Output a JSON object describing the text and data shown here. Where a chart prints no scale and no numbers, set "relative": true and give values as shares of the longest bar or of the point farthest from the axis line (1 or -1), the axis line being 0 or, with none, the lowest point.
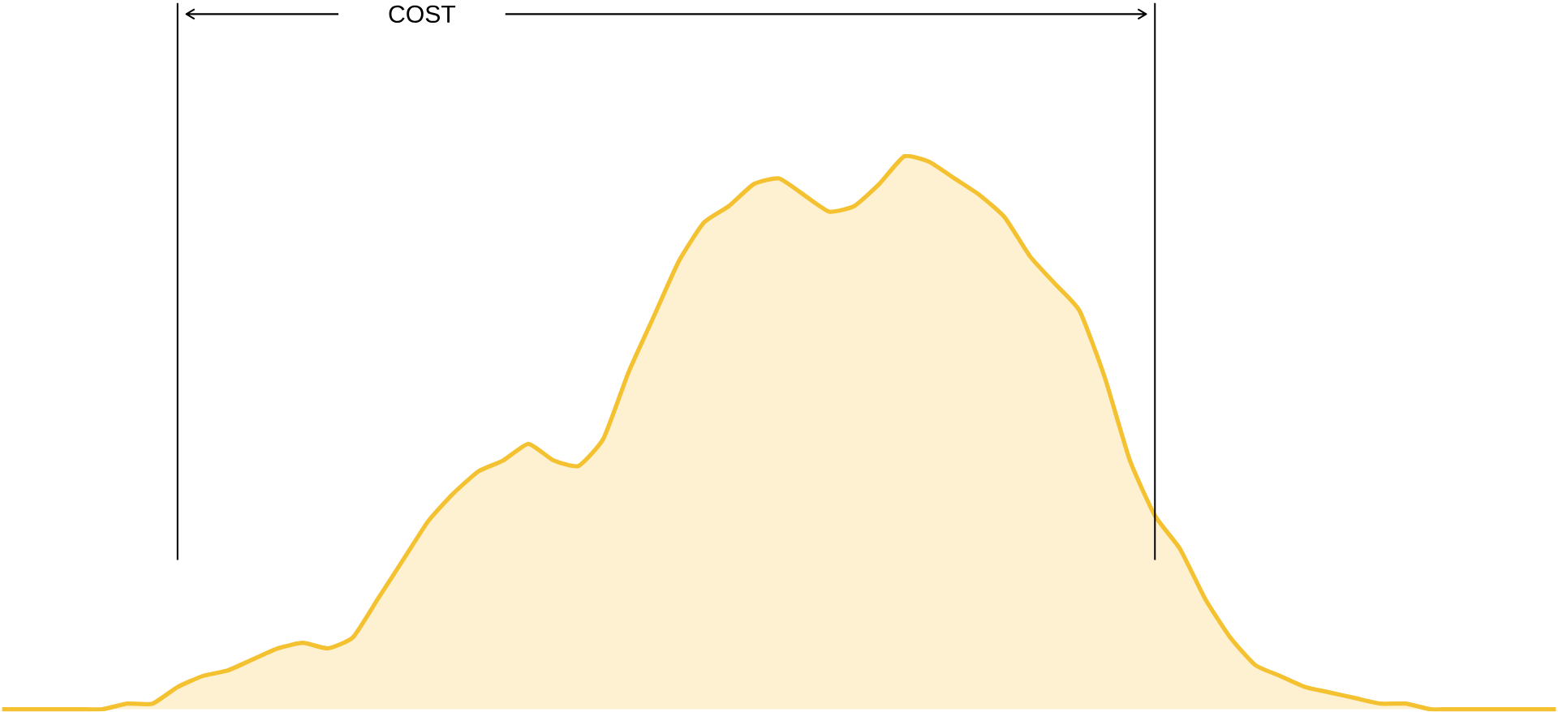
{
  "chart_data": {
    "type": "area",
    "relative": true,
    "categories": [
      null,
      null,
      null,
      null,
      null,
      null,
      null,
      null,
      null,
      null,
      null,
      null,
      null,
      null,
      null,
      null,
      null,
      null,
      null,
      null,
      null,
      null,
      null,
      null,
      null,
      null,
      null,
      null,
      null,
      null,
      null,
      null,
      null,
      null,
      null,
      null,
      null,
      null,
      null,
      null,
      null,
      null,
      null,
      null,
      null,
      null,
      null,
      null,
      null,
      null,
      null,
      null,
      null,
      null,
      null,
      null,
      null,
      null,
      null,
      null,
      null,
      null,
      null
    ],
    "values": [
      0,
      0,
      0,
      0,
      0,
      0.01,
      0.01,
      0.04,
      0.06,
      0.07,
      0.09,
      0.11,
      0.12,
      0.11,
      0.13,
      0.2,
      0.27,
      0.34,
      0.39,
      0.43,
      0.45,
      0.48,
      0.45,
      0.44,
      0.49,
      0.61,
      0.71,
      0.81,
      0.88,
      0.91,
      0.95,
      0.96,
      0.93,
      0.9,
      0.91,
      0.95,
      1.0,
      0.99,
      0.96,
      0.93,
      0.89,
      0.82,
      0.77,
      0.72,
      0.6,
      0.45,
      0.35,
      0.29,
      0.2,
      0.13,
      0.08,
      0.06,
      0.04,
      0.03,
      0.02,
      0.01,
      0.01,
      0,
      0,
      0,
      0,
      0,
      0
    ],
    "color": "#f4c130",
    "annotations": [
      "COST"
    ]
  }
}
